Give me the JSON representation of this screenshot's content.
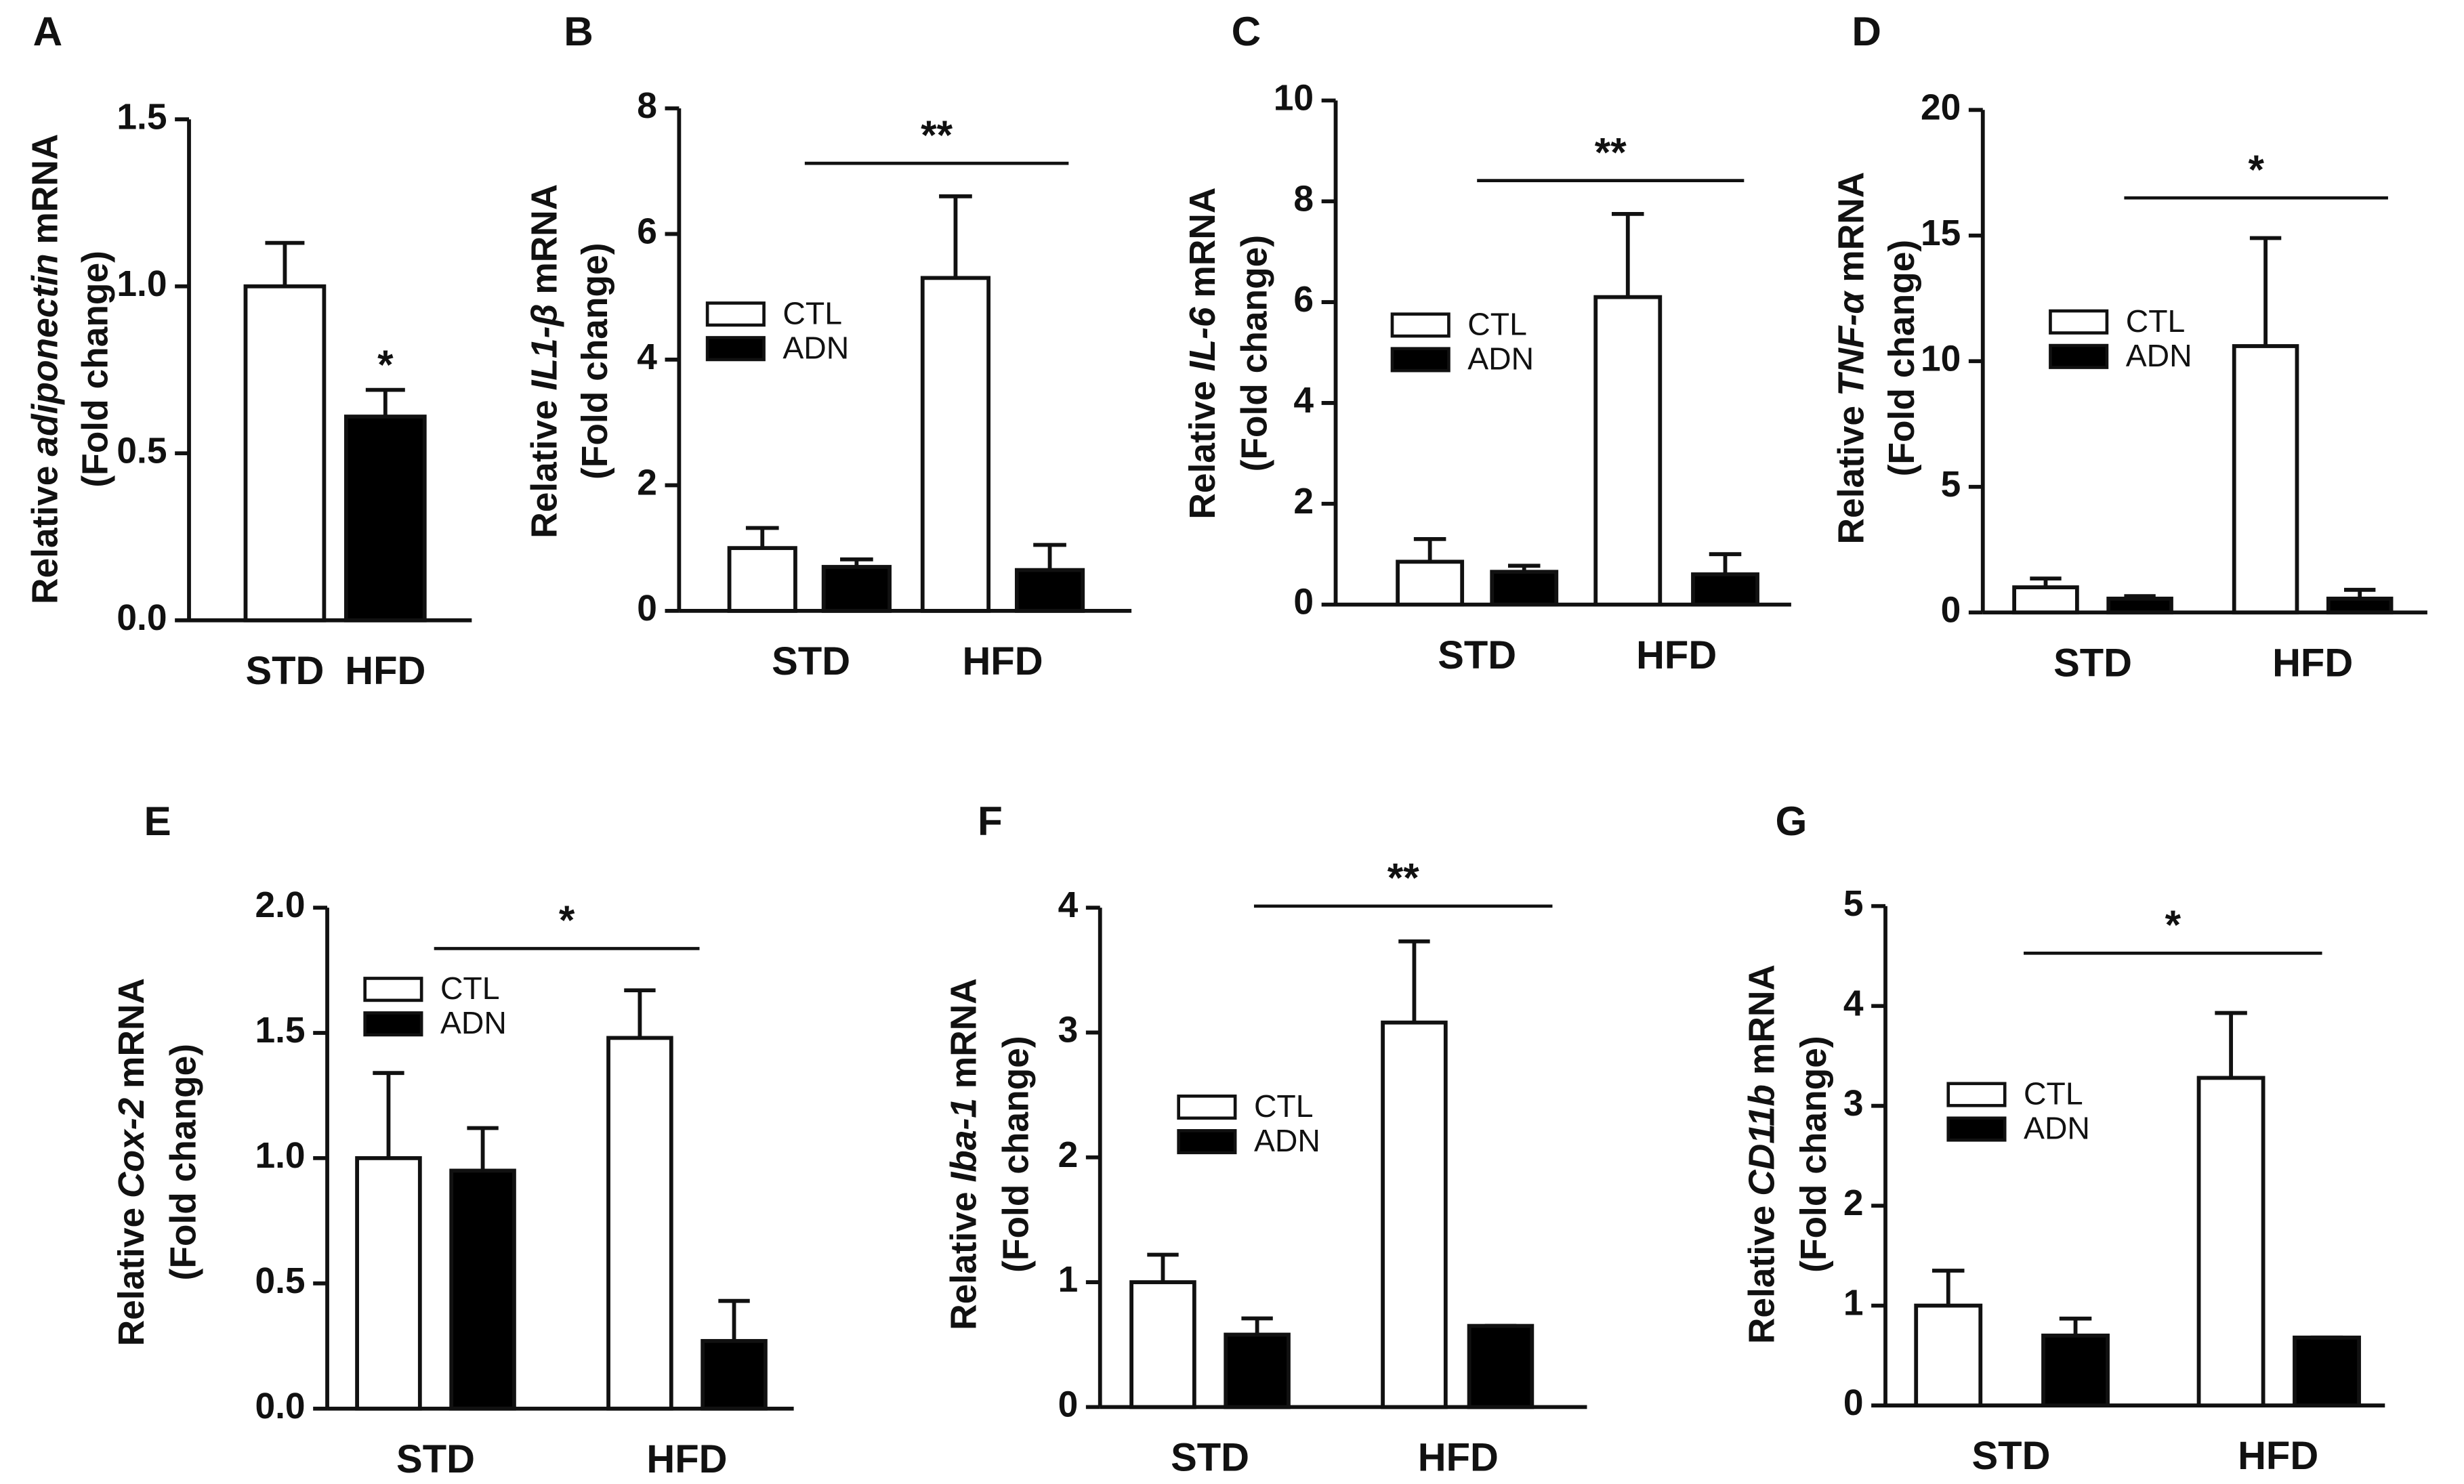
{
  "chart_data": [
    {
      "type": "bar",
      "panel": "A",
      "ylabel": {
        "prefix": "Relative",
        "gene": "adiponectin",
        "suffix": "mRNA"
      },
      "ylabel2": "(Fold change)",
      "categories": [
        "STD",
        "HFD"
      ],
      "values": [
        1.0,
        0.61
      ],
      "errors": [
        0.13,
        0.08
      ],
      "colors": [
        "#ffffff",
        "#000000"
      ],
      "annotation": "*",
      "ylim": [
        0,
        1.5
      ],
      "yticks": [
        {
          "value": 0,
          "label": "0.0"
        },
        {
          "value": 0.5,
          "label": "0.5"
        },
        {
          "value": 1,
          "label": "1.0"
        },
        {
          "value": 1.5,
          "label": "1.5"
        }
      ]
    },
    {
      "type": "bar",
      "panel": "B",
      "ylabel": {
        "prefix": "Relative",
        "gene": "IL1-β",
        "suffix": "mRNA"
      },
      "ylabel2": "(Fold change)",
      "categories": [
        "STD",
        "HFD"
      ],
      "series": [
        {
          "name": "CTL",
          "color": "#ffffff",
          "values": [
            1.0,
            5.3
          ],
          "errors": [
            0.32,
            1.3
          ]
        },
        {
          "name": "ADN",
          "color": "#000000",
          "values": [
            0.7,
            0.65
          ],
          "errors": [
            0.12,
            0.4
          ]
        }
      ],
      "annotation": "**",
      "ylim": [
        0,
        8
      ],
      "yticks": [
        0,
        2,
        4,
        6,
        8
      ]
    },
    {
      "type": "bar",
      "panel": "C",
      "ylabel": {
        "prefix": "Relative",
        "gene": "IL-6",
        "suffix": "mRNA"
      },
      "ylabel2": "(Fold change)",
      "categories": [
        "STD",
        "HFD"
      ],
      "series": [
        {
          "name": "CTL",
          "color": "#ffffff",
          "values": [
            0.85,
            6.1
          ],
          "errors": [
            0.45,
            1.65
          ]
        },
        {
          "name": "ADN",
          "color": "#000000",
          "values": [
            0.65,
            0.6
          ],
          "errors": [
            0.12,
            0.4
          ]
        }
      ],
      "annotation": "**",
      "ylim": [
        0,
        10
      ],
      "yticks": [
        0,
        2,
        4,
        6,
        8,
        10
      ]
    },
    {
      "type": "bar",
      "panel": "D",
      "ylabel": {
        "prefix": "Relative",
        "gene": "TNF-α",
        "suffix": "mRNA"
      },
      "ylabel2": "(Fold change)",
      "categories": [
        "STD",
        "HFD"
      ],
      "series": [
        {
          "name": "CTL",
          "color": "#ffffff",
          "values": [
            1.0,
            10.6
          ],
          "errors": [
            0.35,
            4.3
          ]
        },
        {
          "name": "ADN",
          "color": "#000000",
          "values": [
            0.55,
            0.55
          ],
          "errors": [
            0.1,
            0.35
          ]
        }
      ],
      "annotation": "*",
      "ylim": [
        0,
        20
      ],
      "yticks": [
        0,
        5,
        10,
        15,
        20
      ]
    },
    {
      "type": "bar",
      "panel": "E",
      "ylabel": {
        "prefix": "Relative",
        "gene": "Cox-2",
        "suffix": "mRNA"
      },
      "ylabel2": "(Fold change)",
      "categories": [
        "STD",
        "HFD"
      ],
      "series": [
        {
          "name": "CTL",
          "color": "#ffffff",
          "values": [
            1.0,
            1.48
          ],
          "errors": [
            0.34,
            0.19
          ]
        },
        {
          "name": "ADN",
          "color": "#000000",
          "values": [
            0.95,
            0.27
          ],
          "errors": [
            0.17,
            0.16
          ]
        }
      ],
      "annotation": "*",
      "ylim": [
        0,
        2
      ],
      "yticks": [
        {
          "value": 0,
          "label": "0.0"
        },
        {
          "value": 0.5,
          "label": "0.5"
        },
        {
          "value": 1,
          "label": "1.0"
        },
        {
          "value": 1.5,
          "label": "1.5"
        },
        {
          "value": 2,
          "label": "2.0"
        }
      ]
    },
    {
      "type": "bar",
      "panel": "F",
      "ylabel": {
        "prefix": "Relative",
        "gene": "Iba-1",
        "suffix": "mRNA"
      },
      "ylabel2": "(Fold change)",
      "categories": [
        "STD",
        "HFD"
      ],
      "series": [
        {
          "name": "CTL",
          "color": "#ffffff",
          "values": [
            1.0,
            3.08
          ],
          "errors": [
            0.22,
            0.65
          ]
        },
        {
          "name": "ADN",
          "color": "#000000",
          "values": [
            0.58,
            0.65
          ],
          "errors": [
            0.13,
            0
          ]
        }
      ],
      "annotation": "**",
      "ylim": [
        0,
        4
      ],
      "yticks": [
        0,
        1,
        2,
        3,
        4
      ]
    },
    {
      "type": "bar",
      "panel": "G",
      "ylabel": {
        "prefix": "Relative",
        "gene": "CD11b",
        "suffix": "mRNA"
      },
      "ylabel2": "(Fold change)",
      "categories": [
        "STD",
        "HFD"
      ],
      "series": [
        {
          "name": "CTL",
          "color": "#ffffff",
          "values": [
            1.0,
            3.28
          ],
          "errors": [
            0.35,
            0.65
          ]
        },
        {
          "name": "ADN",
          "color": "#000000",
          "values": [
            0.7,
            0.68
          ],
          "errors": [
            0.17,
            0
          ]
        }
      ],
      "annotation": "*",
      "ylim": [
        0,
        5
      ],
      "yticks": [
        0,
        1,
        2,
        3,
        4,
        5
      ]
    }
  ]
}
